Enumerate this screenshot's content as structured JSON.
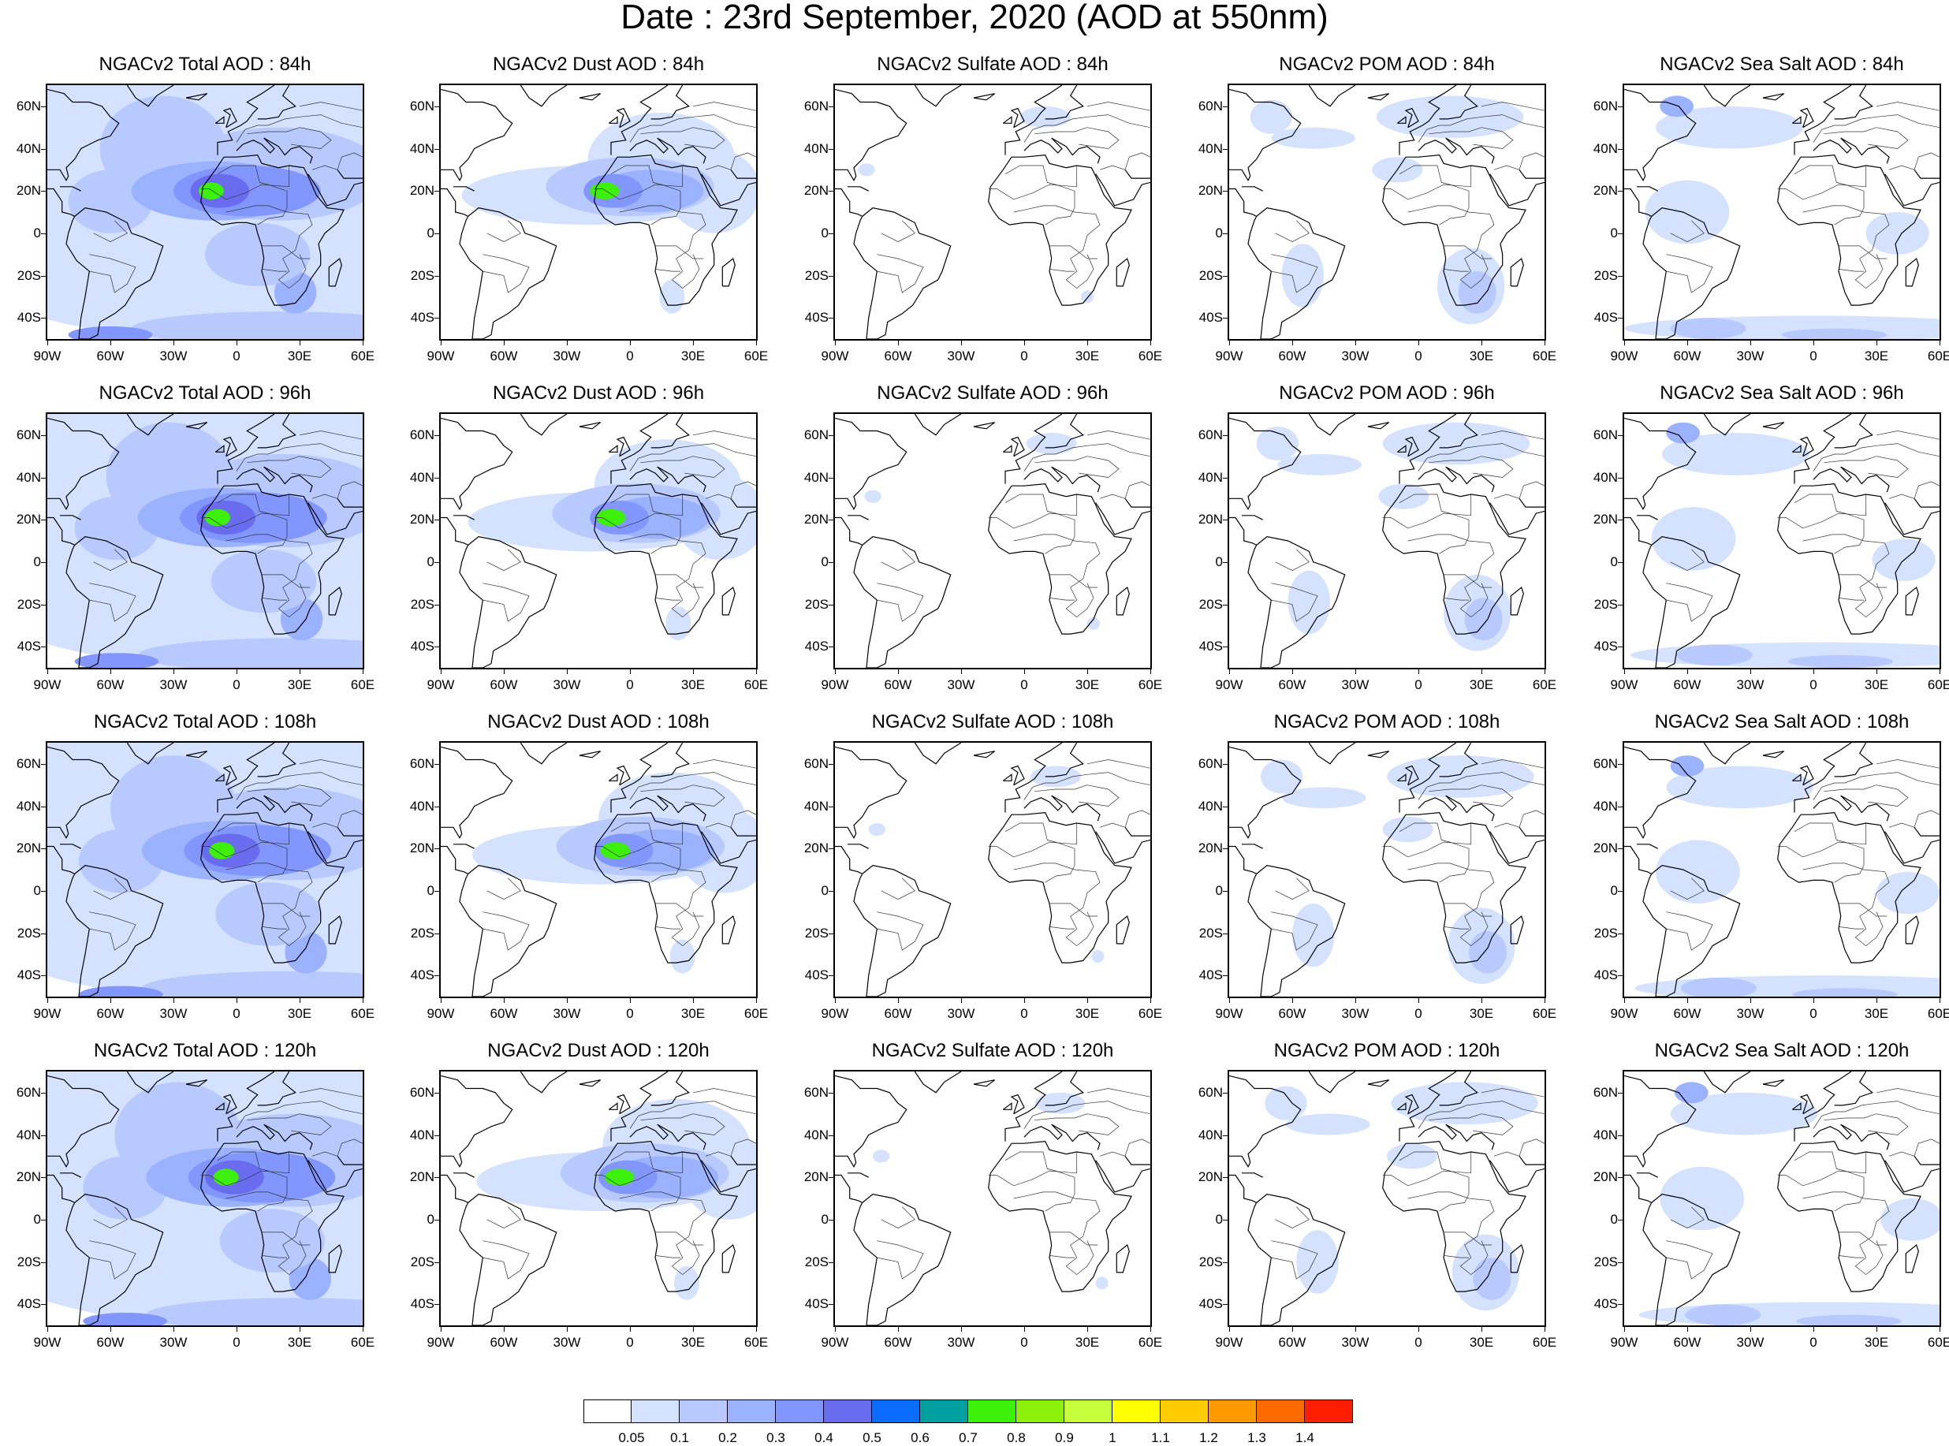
{
  "title": "Date : 23rd September, 2020 (AOD at 550nm)",
  "panels": [
    [
      "NGACv2 Total AOD : 84h",
      "NGACv2 Dust AOD : 84h",
      "NGACv2 Sulfate AOD : 84h",
      "NGACv2 POM AOD : 84h",
      "NGACv2 Sea Salt AOD : 84h"
    ],
    [
      "NGACv2 Total AOD : 96h",
      "NGACv2 Dust AOD : 96h",
      "NGACv2 Sulfate AOD : 96h",
      "NGACv2 POM AOD : 96h",
      "NGACv2 Sea Salt AOD : 96h"
    ],
    [
      "NGACv2 Total AOD : 108h",
      "NGACv2 Dust AOD : 108h",
      "NGACv2 Sulfate AOD : 108h",
      "NGACv2 POM AOD : 108h",
      "NGACv2 Sea Salt AOD : 108h"
    ],
    [
      "NGACv2 Total AOD : 120h",
      "NGACv2 Dust AOD : 120h",
      "NGACv2 Sulfate AOD : 120h",
      "NGACv2 POM AOD : 120h",
      "NGACv2 Sea Salt  AOD : 120h"
    ]
  ],
  "lat_labels": [
    "60N",
    "40N",
    "20N",
    "0",
    "20S",
    "40S"
  ],
  "lon_labels": [
    "90W",
    "60W",
    "30W",
    "0",
    "30E",
    "60E"
  ],
  "colorbar": {
    "labels": [
      "0.05",
      "0.1",
      "0.2",
      "0.3",
      "0.4",
      "0.5",
      "0.6",
      "0.7",
      "0.8",
      "0.9",
      "1",
      "1.1",
      "1.2",
      "1.3",
      "1.4"
    ],
    "colors": [
      "#ffffff",
      "#d4e2ff",
      "#b7c9ff",
      "#9ab2ff",
      "#8296ff",
      "#6a6cf0",
      "#0a6cff",
      "#00a0a0",
      "#3cf00a",
      "#8cf00a",
      "#c8ff3c",
      "#ffff00",
      "#ffcc00",
      "#ff9900",
      "#ff6a00",
      "#ff1e00"
    ]
  },
  "fields": {
    "total": "widespread light blue haze over Atlantic, dense Saharan dust plume 0.5-0.8 over West Africa",
    "dust": "Saharan dust plume over North Africa and tropical Atlantic",
    "sulfate": "near zero everywhere",
    "pom": "smoke over southern Africa and Europe",
    "seasalt": "Southern Ocean and North Atlantic bands"
  }
}
